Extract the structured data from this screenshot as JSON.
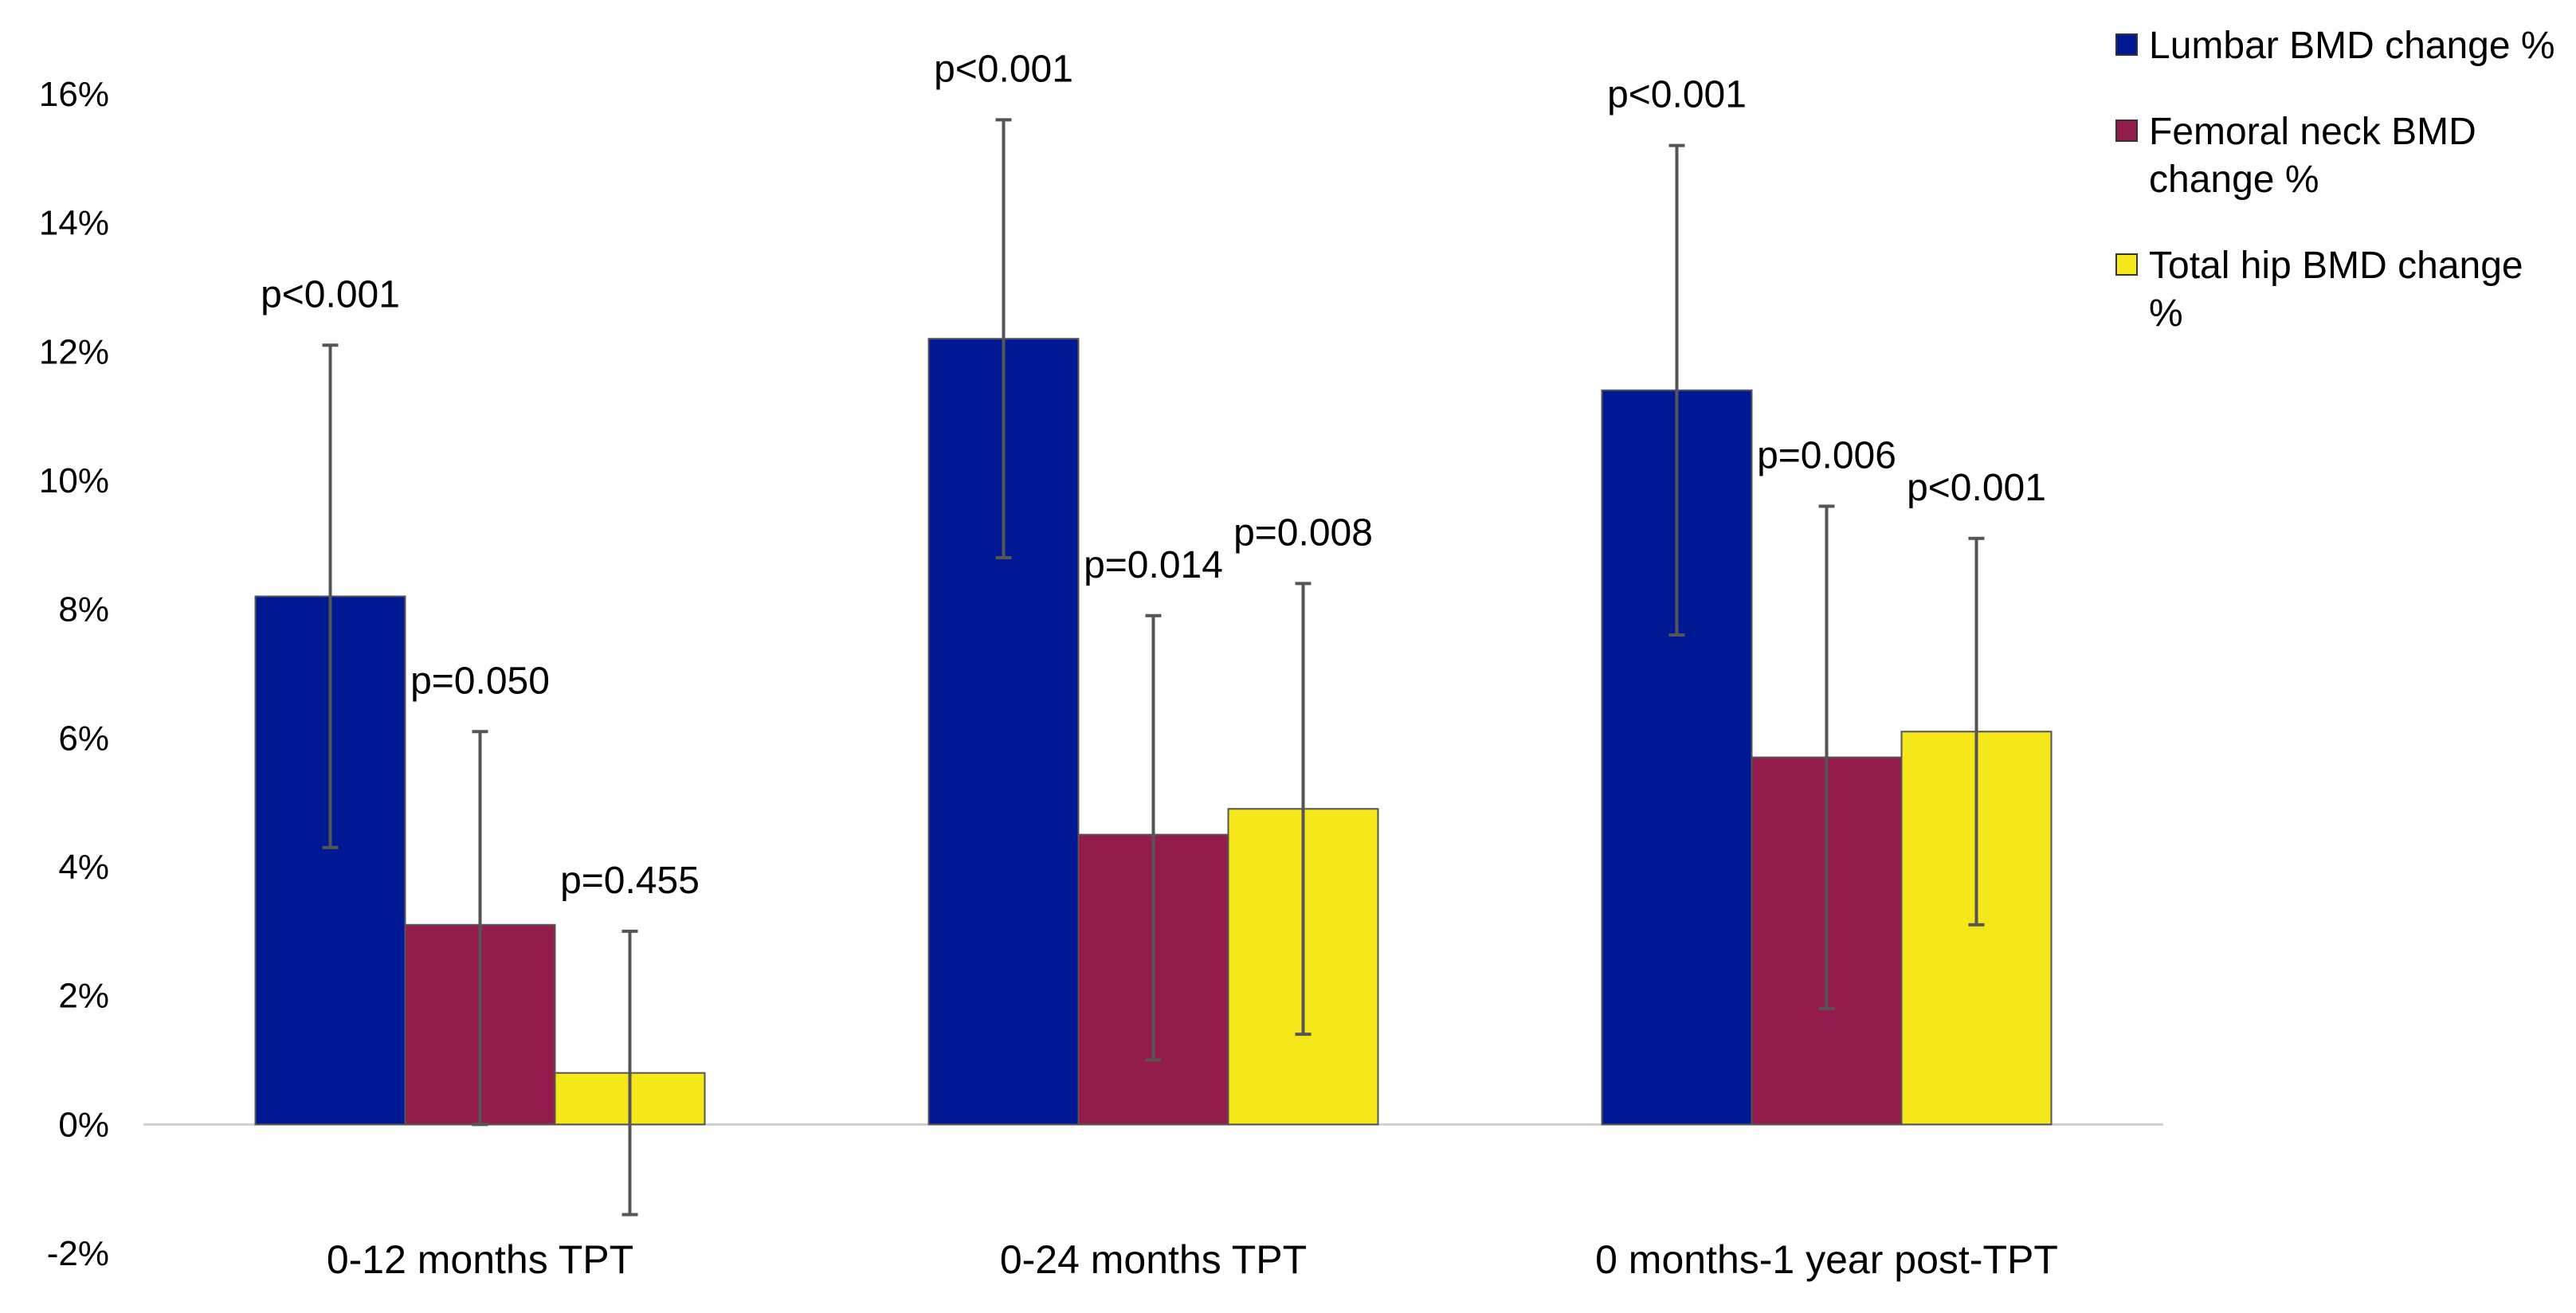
{
  "chart_data": {
    "type": "bar",
    "title": "",
    "xlabel": "",
    "ylabel": "",
    "ylim": [
      -2,
      16
    ],
    "yticks": [
      -2,
      0,
      2,
      4,
      6,
      8,
      10,
      12,
      14,
      16
    ],
    "ytick_labels": [
      "-2%",
      "0%",
      "2%",
      "4%",
      "6%",
      "8%",
      "10%",
      "12%",
      "14%",
      "16%"
    ],
    "categories": [
      "0-12 months TPT",
      "0-24 months TPT",
      "0 months-1 year post-TPT"
    ],
    "legend_position": "top-right",
    "series": [
      {
        "name": "Lumbar BMD change %",
        "color": "#001993",
        "values": [
          8.2,
          12.2,
          11.4
        ],
        "err_low": [
          4.3,
          8.8,
          7.6
        ],
        "err_high": [
          12.1,
          15.6,
          15.2
        ],
        "p_values": [
          "p<0.001",
          "p<0.001",
          "p<0.001"
        ]
      },
      {
        "name": "Femoral neck BMD change %",
        "color": "#941c4d",
        "values": [
          3.1,
          4.5,
          5.7
        ],
        "err_low": [
          0.0,
          1.0,
          1.8
        ],
        "err_high": [
          6.1,
          7.9,
          9.6
        ],
        "p_values": [
          "p=0.050",
          "p=0.014",
          "p=0.006"
        ]
      },
      {
        "name": "Total hip BMD change %",
        "color": "#f5e719",
        "values": [
          0.8,
          4.9,
          6.1
        ],
        "err_low": [
          -1.4,
          1.4,
          3.1
        ],
        "err_high": [
          3.0,
          8.4,
          9.1
        ],
        "p_values": [
          "p=0.455",
          "p=0.008",
          "p<0.001"
        ]
      }
    ]
  }
}
